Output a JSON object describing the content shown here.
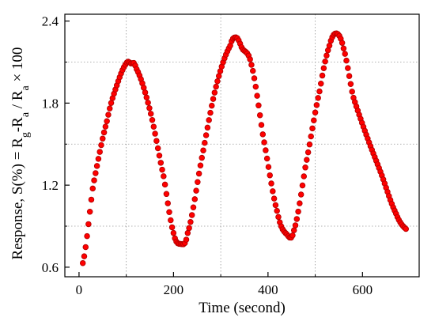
{
  "chart_data": {
    "type": "scatter",
    "xlabel": "Time (second)",
    "ylabel": {
      "prefix": "Response, S(%) = R",
      "sub1": "g",
      "mid": "-R",
      "sub2": "a",
      "slash": " / R",
      "sub3": "a",
      "suffix": " × 100"
    },
    "xlim": [
      -30,
      720
    ],
    "ylim": [
      0.53,
      2.45
    ],
    "xticks": [
      0,
      200,
      400,
      600
    ],
    "xtick_labels": [
      "0",
      "200",
      "400",
      "600"
    ],
    "yticks": [
      0.6,
      1.2,
      1.8,
      2.4
    ],
    "ytick_labels": [
      "0.6",
      "1.2",
      "1.8",
      "2.4"
    ],
    "grid": true,
    "marker_color": "#ff0000",
    "marker_edge_color": "#b30000",
    "keypoints": [
      [
        8,
        0.63
      ],
      [
        30,
        1.2
      ],
      [
        60,
        1.68
      ],
      [
        80,
        1.93
      ],
      [
        100,
        2.09
      ],
      [
        110,
        2.09
      ],
      [
        120,
        2.06
      ],
      [
        150,
        1.75
      ],
      [
        180,
        1.25
      ],
      [
        200,
        0.85
      ],
      [
        215,
        0.77
      ],
      [
        230,
        0.85
      ],
      [
        260,
        1.4
      ],
      [
        290,
        1.92
      ],
      [
        320,
        2.22
      ],
      [
        333,
        2.28
      ],
      [
        345,
        2.2
      ],
      [
        365,
        2.08
      ],
      [
        390,
        1.55
      ],
      [
        420,
        1.0
      ],
      [
        440,
        0.84
      ],
      [
        455,
        0.87
      ],
      [
        480,
        1.35
      ],
      [
        510,
        1.9
      ],
      [
        530,
        2.22
      ],
      [
        545,
        2.31
      ],
      [
        560,
        2.2
      ],
      [
        580,
        1.85
      ],
      [
        610,
        1.55
      ],
      [
        640,
        1.28
      ],
      [
        670,
        1.0
      ],
      [
        692,
        0.88
      ]
    ],
    "sample_step": 3
  }
}
